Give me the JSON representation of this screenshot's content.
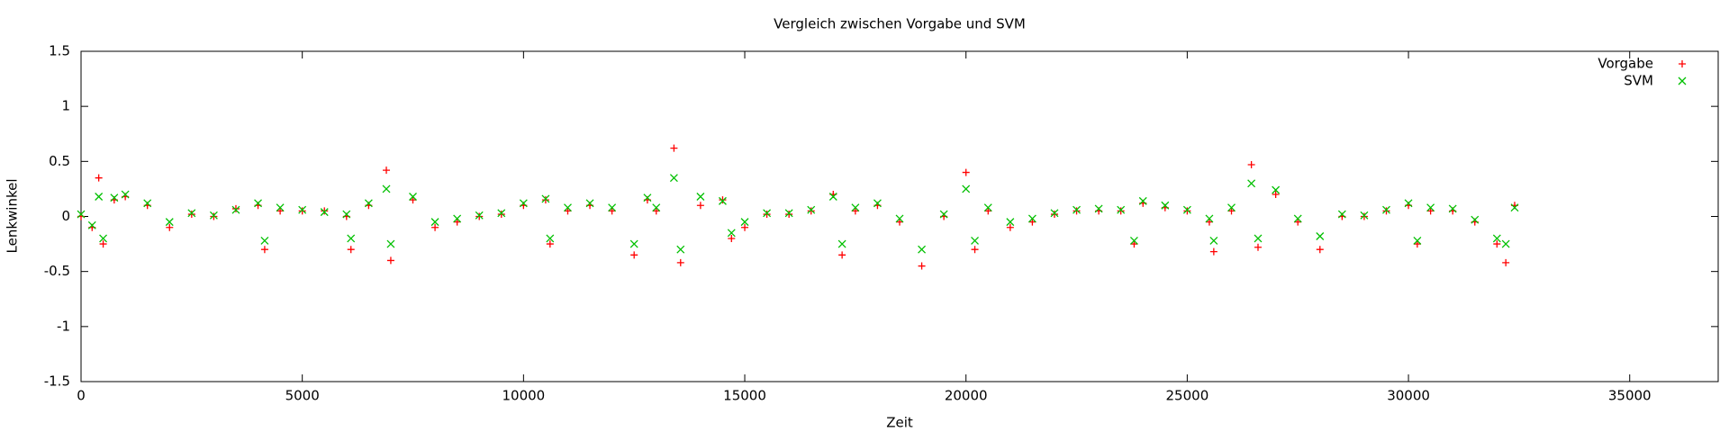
{
  "chart_data": {
    "type": "scatter",
    "title": "Vergleich zwischen Vorgabe und SVM",
    "x_label": "Zeit",
    "y_label": "Lenkwinkel",
    "xlim": [
      0,
      37000
    ],
    "ylim": [
      -1.5,
      1.5
    ],
    "xticks": [
      0,
      5000,
      10000,
      15000,
      20000,
      25000,
      30000,
      35000
    ],
    "yticks": [
      -1.5,
      -1,
      -0.5,
      0,
      0.5,
      1,
      1.5
    ],
    "grid": false,
    "legend": "top-right",
    "x": [
      0,
      250,
      400,
      500,
      750,
      1000,
      1500,
      2000,
      2500,
      3000,
      3500,
      4000,
      4150,
      4500,
      5000,
      5500,
      6000,
      6100,
      6500,
      6900,
      7000,
      7500,
      8000,
      8500,
      9000,
      9500,
      10000,
      10500,
      10600,
      11000,
      11500,
      12000,
      12500,
      12800,
      13000,
      13400,
      13550,
      14000,
      14500,
      14700,
      15000,
      15500,
      16000,
      16500,
      17000,
      17200,
      17500,
      18000,
      18500,
      19000,
      19500,
      20000,
      20200,
      20500,
      21000,
      21500,
      22000,
      22500,
      23000,
      23500,
      23800,
      24000,
      24500,
      25000,
      25500,
      25600,
      26000,
      26450,
      26600,
      27000,
      27500,
      28000,
      28500,
      29000,
      29500,
      30000,
      30200,
      30500,
      31000,
      31500,
      32000,
      32200,
      32400
    ],
    "series": [
      {
        "name": "Vorgabe",
        "color": "#ff0000",
        "marker": "+",
        "values": [
          0,
          -0.1,
          0.35,
          -0.25,
          0.15,
          0.18,
          0.1,
          -0.1,
          0.02,
          0,
          0.07,
          0.1,
          -0.3,
          0.05,
          0.05,
          0.05,
          0,
          -0.3,
          0.1,
          0.42,
          -0.4,
          0.15,
          -0.1,
          -0.05,
          0,
          0.02,
          0.1,
          0.15,
          -0.25,
          0.05,
          0.1,
          0.05,
          -0.35,
          0.15,
          0.05,
          0.62,
          -0.42,
          0.1,
          0.15,
          -0.2,
          -0.1,
          0.02,
          0.02,
          0.05,
          0.2,
          -0.35,
          0.05,
          0.1,
          -0.05,
          -0.45,
          0,
          0.4,
          -0.3,
          0.05,
          -0.1,
          -0.05,
          0.02,
          0.05,
          0.05,
          0.05,
          -0.25,
          0.12,
          0.08,
          0.05,
          -0.05,
          -0.32,
          0.05,
          0.47,
          -0.28,
          0.2,
          -0.05,
          -0.3,
          0,
          0,
          0.05,
          0.1,
          -0.25,
          0.05,
          0.05,
          -0.05,
          -0.25,
          -0.42,
          0.1
        ]
      },
      {
        "name": "SVM",
        "color": "#00c000",
        "marker": "x",
        "values": [
          0.02,
          -0.08,
          0.18,
          -0.2,
          0.17,
          0.2,
          0.12,
          -0.05,
          0.03,
          0.01,
          0.06,
          0.12,
          -0.22,
          0.08,
          0.06,
          0.04,
          0.02,
          -0.2,
          0.12,
          0.25,
          -0.25,
          0.18,
          -0.05,
          -0.02,
          0.01,
          0.03,
          0.12,
          0.16,
          -0.2,
          0.08,
          0.12,
          0.08,
          -0.25,
          0.17,
          0.08,
          0.35,
          -0.3,
          0.18,
          0.14,
          -0.15,
          -0.05,
          0.03,
          0.03,
          0.06,
          0.18,
          -0.25,
          0.08,
          0.12,
          -0.02,
          -0.3,
          0.02,
          0.25,
          -0.22,
          0.08,
          -0.05,
          -0.02,
          0.03,
          0.06,
          0.07,
          0.06,
          -0.22,
          0.14,
          0.1,
          0.06,
          -0.02,
          -0.22,
          0.08,
          0.3,
          -0.2,
          0.24,
          -0.02,
          -0.18,
          0.02,
          0.01,
          0.06,
          0.12,
          -0.22,
          0.08,
          0.07,
          -0.03,
          -0.2,
          -0.25,
          0.08
        ]
      }
    ]
  }
}
